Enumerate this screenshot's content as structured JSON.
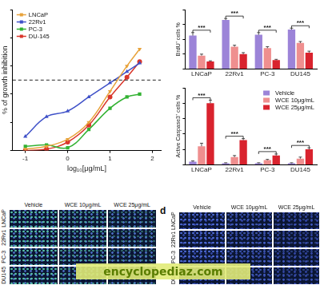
{
  "chart_data": [
    {
      "type": "line",
      "x_label": "log₁₀[μg/mL]",
      "y_label": "% of growth inhibition",
      "x": [
        -1,
        -0.5,
        0,
        0.5,
        1,
        1.4,
        1.7
      ],
      "series": [
        {
          "name": "LNCaP",
          "color": "#e8a33c",
          "marker": "triangle_down",
          "values": [
            1,
            3,
            8,
            20,
            42,
            60,
            72
          ]
        },
        {
          "name": "22Rv1",
          "color": "#3f51c8",
          "marker": "triangle",
          "values": [
            10,
            24,
            28,
            38,
            48,
            56,
            62
          ]
        },
        {
          "name": "PC-3",
          "color": "#33b233",
          "marker": "square",
          "values": [
            3,
            4,
            2,
            15,
            30,
            38,
            40
          ]
        },
        {
          "name": "DU-145",
          "color": "#d9362b",
          "marker": "circle",
          "values": [
            0,
            1,
            6,
            18,
            38,
            52,
            63
          ]
        }
      ],
      "reference_line": {
        "value": 50,
        "line_style": "dashed"
      },
      "xlim": [
        -1.3,
        2.2
      ],
      "xticks": [
        -1,
        0,
        1,
        2
      ],
      "ylim": [
        0,
        100
      ],
      "yticks": [
        0,
        20,
        40,
        60,
        80,
        100
      ],
      "tick_labels": "x",
      "grid": false,
      "legend": "upper left"
    },
    {
      "type": "bar",
      "y_label": "BrdU⁺ cells %",
      "categories": [
        "LNCaP",
        "22Rv1",
        "PC-3",
        "DU145"
      ],
      "series": [
        {
          "color": "#9c84d8",
          "values": [
            45,
            66,
            46,
            53
          ],
          "errors": [
            4,
            2,
            3,
            2
          ]
        },
        {
          "color": "#ef8f8f",
          "values": [
            18,
            30,
            28,
            35
          ],
          "errors": [
            2,
            2,
            2,
            2
          ]
        },
        {
          "color": "#d9232e",
          "values": [
            10,
            20,
            12,
            22
          ],
          "errors": [
            1,
            2,
            1,
            2
          ]
        }
      ],
      "significance": [
        "***",
        "***",
        "***",
        "***"
      ],
      "ylim": [
        0,
        80
      ],
      "yticks": [
        0,
        20,
        40,
        60,
        80
      ],
      "tick_labels": "x",
      "grid": false
    },
    {
      "type": "bar",
      "y_label": "Active Caspase3⁺ cells %",
      "categories": [
        "LNCaP",
        "22Rv1",
        "PC-3",
        "DU145"
      ],
      "series": [
        {
          "name": "Vehicle",
          "color": "#9c84d8",
          "values": [
            2,
            1,
            1,
            1
          ],
          "errors": [
            0.5,
            0.3,
            0.3,
            0.3
          ]
        },
        {
          "name": "WCE 10μg/mL",
          "color": "#ef8f8f",
          "values": [
            12,
            5,
            3,
            4
          ],
          "errors": [
            2,
            1,
            0.5,
            1
          ]
        },
        {
          "name": "WCE 25μg/mL",
          "color": "#d9232e",
          "values": [
            40,
            16,
            6,
            10
          ],
          "errors": [
            2,
            1,
            1,
            1
          ]
        }
      ],
      "significance": [
        "***",
        "***",
        "***",
        "***"
      ],
      "ylim": [
        0,
        50
      ],
      "yticks": [
        0,
        10,
        20,
        30,
        40,
        50
      ],
      "tick_labels": "x",
      "grid": false,
      "legend": "upper right"
    }
  ],
  "image_panels": [
    {
      "columns": [
        "Vehicle",
        "WCE 10μg/mL",
        "WCE 25μg/mL"
      ],
      "rows": [
        "LNCaP",
        "22Rv1",
        "PC-3",
        "DU145"
      ]
    },
    {
      "label": "d",
      "columns": [
        "Vehicle",
        "WCE 10μg/mL",
        "WCE 25μg/mL"
      ],
      "rows": [
        "LNCaP",
        "22Rv1",
        "PC-3",
        "DU145"
      ]
    }
  ],
  "watermark": "encyclopediaz.com"
}
